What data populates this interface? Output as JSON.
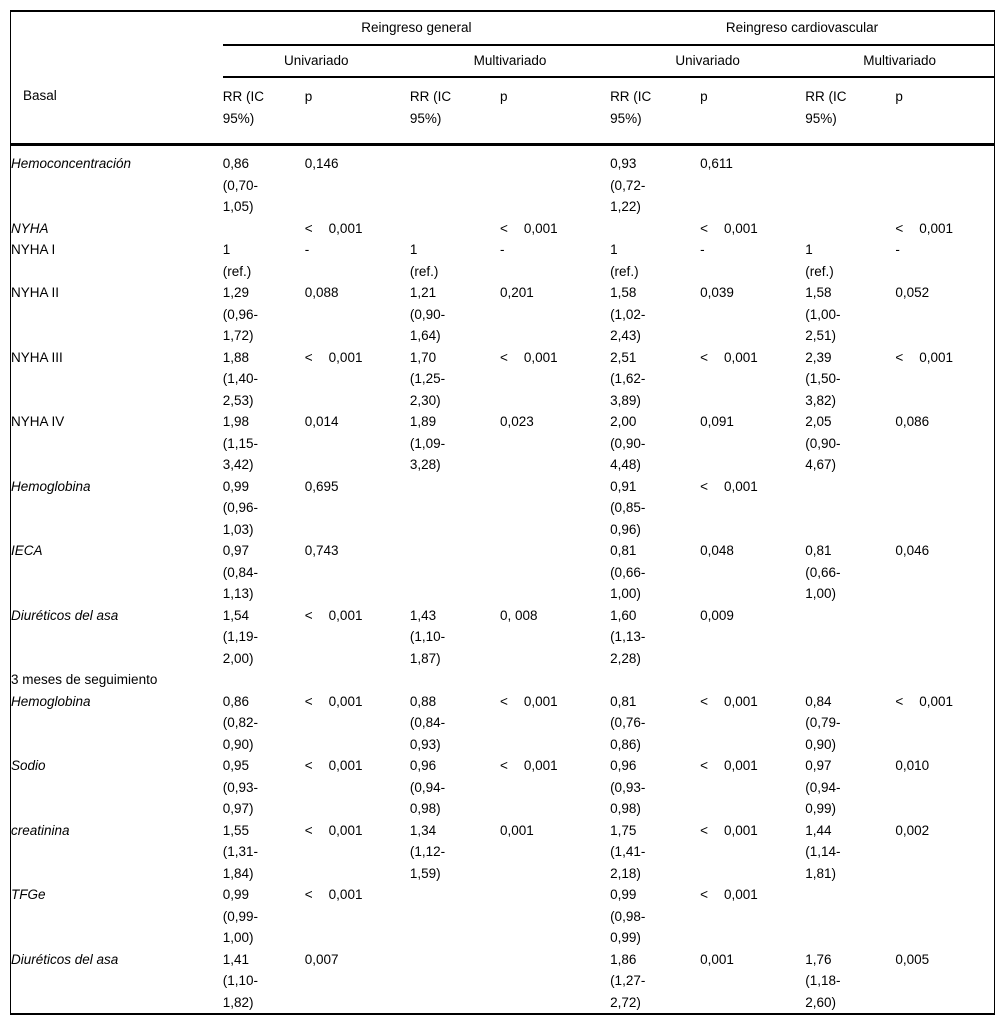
{
  "colors": {
    "text": "#000000",
    "background": "#ffffff",
    "rule": "#000000"
  },
  "table": {
    "corner_label": "Basal",
    "group_headers": [
      "Reingreso general",
      "Reingreso cardiovascular"
    ],
    "sub_headers": [
      "Univariado",
      "Multivariado",
      "Univariado",
      "Multivariado"
    ],
    "col_headers": [
      "RR (IC 95%)",
      "p"
    ],
    "sections": [
      {
        "rows": [
          {
            "label": "Hemoconcentración",
            "style": "var",
            "cells": [
              "0,86 (0,70-1,05)",
              "0,146",
              "",
              "",
              "0,93 (0,72-1,22)",
              "0,611",
              "",
              ""
            ]
          },
          {
            "label": "NYHA",
            "style": "var",
            "cells": [
              "",
              "< 0,001",
              "",
              "< 0,001",
              "",
              "< 0,001",
              "",
              "< 0,001"
            ]
          },
          {
            "label": "NYHA I",
            "style": "sub",
            "cells": [
              "1 (ref.)",
              "-",
              "1 (ref.)",
              "-",
              "1 (ref.)",
              "-",
              "1 (ref.)",
              "-"
            ]
          },
          {
            "label": "NYHA II",
            "style": "sub",
            "cells": [
              "1,29 (0,96-1,72)",
              "0,088",
              "1,21 (0,90-1,64)",
              "0,201",
              "1,58 (1,02-2,43)",
              "0,039",
              "1,58 (1,00-2,51)",
              "0,052"
            ]
          },
          {
            "label": "NYHA III",
            "style": "sub",
            "cells": [
              "1,88 (1,40-2,53)",
              "< 0,001",
              "1,70 (1,25-2,30)",
              "< 0,001",
              "2,51 (1,62-3,89)",
              "< 0,001",
              "2,39 (1,50-3,82)",
              "< 0,001"
            ]
          },
          {
            "label": "NYHA IV",
            "style": "sub",
            "cells": [
              "1,98 (1,15-3,42)",
              "0,014",
              "1,89 (1,09-3,28)",
              "0,023",
              "2,00 (0,90-4,48)",
              "0,091",
              "2,05 (0,90-4,67)",
              "0,086"
            ]
          },
          {
            "label": "Hemoglobina",
            "style": "var",
            "cells": [
              "0,99 (0,96-1,03)",
              "0,695",
              "",
              "",
              "0,91 (0,85-0,96)",
              "< 0,001",
              "",
              ""
            ]
          },
          {
            "label": "IECA",
            "style": "var",
            "cells": [
              "0,97 (0,84-1,13)",
              "0,743",
              "",
              "",
              "0,81 (0,66-1,00)",
              "0,048",
              "0,81 (0,66-1,00)",
              "0,046"
            ]
          },
          {
            "label": "Diuréticos del asa",
            "style": "var",
            "cells": [
              "1,54 (1,19-2,00)",
              "< 0,001",
              "1,43 (1,10-1,87)",
              "0, 008",
              "1,60 (1,13-2,28)",
              "0,009",
              "",
              ""
            ]
          }
        ]
      },
      {
        "header": "3 meses de seguimiento",
        "rows": [
          {
            "label": "Hemoglobina",
            "style": "var",
            "cells": [
              "0,86 (0,82-0,90)",
              "< 0,001",
              "0,88 (0,84-0,93)",
              "< 0,001",
              "0,81 (0,76-0,86)",
              "< 0,001",
              "0,84 (0,79-0,90)",
              "< 0,001"
            ]
          },
          {
            "label": "Sodio",
            "style": "var",
            "cells": [
              "0,95 (0,93-0,97)",
              "< 0,001",
              "0,96 (0,94-0,98)",
              "< 0,001",
              "0,96 (0,93-0,98)",
              "< 0,001",
              "0,97 (0,94-0,99)",
              "0,010"
            ]
          },
          {
            "label": "creatinina",
            "style": "var",
            "cells": [
              "1,55 (1,31-1,84)",
              "< 0,001",
              "1,34 (1,12-1,59)",
              "0,001",
              "1,75 (1,41-2,18)",
              "< 0,001",
              "1,44 (1,14-1,81)",
              "0,002"
            ]
          },
          {
            "label": "TFGe",
            "style": "var",
            "cells": [
              "0,99 (0,99-1,00)",
              "< 0,001",
              "",
              "",
              "0,99 (0,98-0,99)",
              "< 0,001",
              "",
              ""
            ]
          },
          {
            "label": "Diuréticos del asa",
            "style": "var",
            "cells": [
              "1,41 (1,10-1,82)",
              "0,007",
              "",
              "",
              "1,86 (1,27-2,72)",
              "0,001",
              "1,76 (1,18-2,60)",
              "0,005"
            ]
          }
        ]
      }
    ]
  }
}
